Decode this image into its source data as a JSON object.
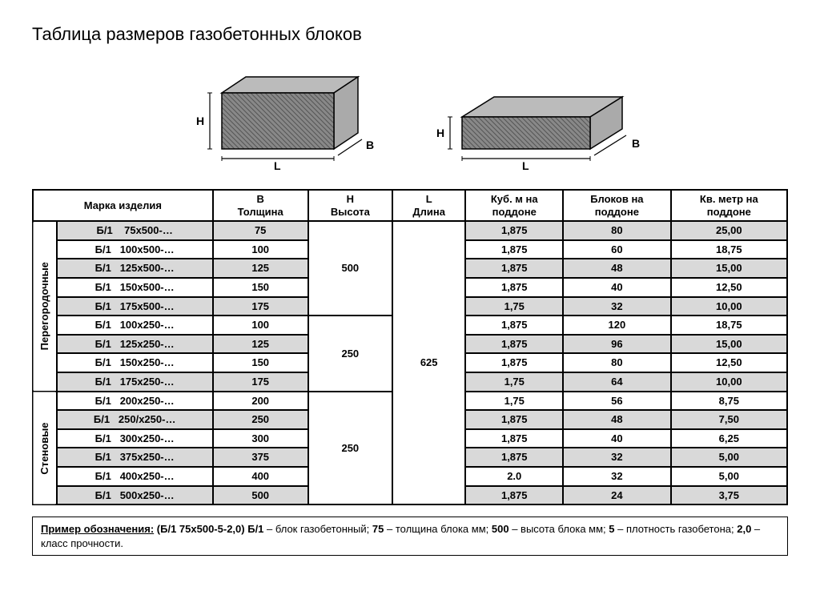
{
  "title": "Таблица размеров газобетонных блоков",
  "diagram_labels": {
    "H": "H",
    "L": "L",
    "B": "B"
  },
  "columns": {
    "marka": "Марка изделия",
    "b": "B\nТолщина",
    "h": "H\nВысота",
    "l": "L\nДлина",
    "m3": "Куб. м на\nподдоне",
    "blocks": "Блоков на\nподдоне",
    "m2": "Кв. метр на\nподдоне"
  },
  "groups": [
    {
      "name": "Перегородочные",
      "subgroups": [
        {
          "h": "500",
          "rows": [
            {
              "marka": "Б/1    75х500-…",
              "b": "75",
              "m3": "1,875",
              "blocks": "80",
              "m2": "25,00",
              "shade": true
            },
            {
              "marka": "Б/1   100х500-…",
              "b": "100",
              "m3": "1,875",
              "blocks": "60",
              "m2": "18,75",
              "shade": false
            },
            {
              "marka": "Б/1   125х500-…",
              "b": "125",
              "m3": "1,875",
              "blocks": "48",
              "m2": "15,00",
              "shade": true
            },
            {
              "marka": "Б/1   150х500-…",
              "b": "150",
              "m3": "1,875",
              "blocks": "40",
              "m2": "12,50",
              "shade": false
            },
            {
              "marka": "Б/1   175х500-…",
              "b": "175",
              "m3": "1,75",
              "blocks": "32",
              "m2": "10,00",
              "shade": true
            }
          ]
        },
        {
          "h": "250",
          "rows": [
            {
              "marka": "Б/1   100х250-…",
              "b": "100",
              "m3": "1,875",
              "blocks": "120",
              "m2": "18,75",
              "shade": false
            },
            {
              "marka": "Б/1   125х250-…",
              "b": "125",
              "m3": "1,875",
              "blocks": "96",
              "m2": "15,00",
              "shade": true
            },
            {
              "marka": "Б/1   150х250-…",
              "b": "150",
              "m3": "1,875",
              "blocks": "80",
              "m2": "12,50",
              "shade": false
            },
            {
              "marka": "Б/1   175х250-…",
              "b": "175",
              "m3": "1,75",
              "blocks": "64",
              "m2": "10,00",
              "shade": true
            }
          ]
        }
      ]
    },
    {
      "name": "Стеновые",
      "subgroups": [
        {
          "h": "250",
          "rows": [
            {
              "marka": "Б/1   200х250-…",
              "b": "200",
              "m3": "1,75",
              "blocks": "56",
              "m2": "8,75",
              "shade": false
            },
            {
              "marka": "Б/1   250/х250-…",
              "b": "250",
              "m3": "1,875",
              "blocks": "48",
              "m2": "7,50",
              "shade": true
            },
            {
              "marka": "Б/1   300х250-…",
              "b": "300",
              "m3": "1,875",
              "blocks": "40",
              "m2": "6,25",
              "shade": false
            },
            {
              "marka": "Б/1   375х250-…",
              "b": "375",
              "m3": "1,875",
              "blocks": "32",
              "m2": "5,00",
              "shade": true
            },
            {
              "marka": "Б/1   400х250-…",
              "b": "400",
              "m3": "2.0",
              "blocks": "32",
              "m2": "5,00",
              "shade": false
            },
            {
              "marka": "Б/1   500х250-…",
              "b": "500",
              "m3": "1,875",
              "blocks": "24",
              "m2": "3,75",
              "shade": true
            }
          ]
        }
      ]
    }
  ],
  "l_value": "625",
  "legend": {
    "lead": "Пример обозначения:",
    "code": "(Б/1 75х500-5-2,0)",
    "parts": [
      {
        "b": "Б/1",
        "t": " – блок газобетонный; "
      },
      {
        "b": "75",
        "t": " – толщина блока мм; "
      },
      {
        "b": "500",
        "t": " – высота блока мм; "
      },
      {
        "b": "5",
        "t": " – плотность газобетона; "
      },
      {
        "b": "2,0",
        "t": " – класс прочности."
      }
    ]
  },
  "style": {
    "shade_color": "#d9d9d9",
    "border_color": "#000000"
  }
}
